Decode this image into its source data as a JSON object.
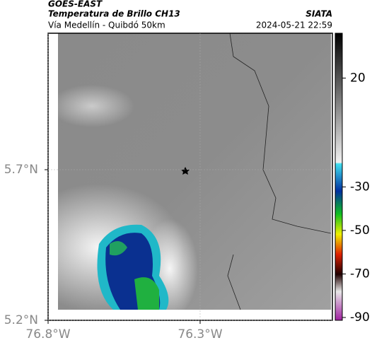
{
  "header": {
    "satellite": "GOES-EAST",
    "product": "Temperatura de Brillo CH13",
    "location": "Vía Medellín - Quibdó 50km",
    "source": "SIATA",
    "datetime": "2024-05-21 22:59"
  },
  "map": {
    "xlim": [
      -76.8,
      -75.865
    ],
    "ylim": [
      5.2,
      6.153
    ],
    "xticks": [
      {
        "value": -76.8,
        "label": "76.8°W"
      },
      {
        "value": -76.3,
        "label": "76.3°W"
      }
    ],
    "yticks": [
      {
        "value": 5.2,
        "label": "5.2°N"
      },
      {
        "value": 5.7,
        "label": "5.7°N"
      }
    ],
    "grid": true
  },
  "colorbar": {
    "lim": [
      -91.3,
      40.6
    ],
    "ticks": [
      20,
      -30,
      -50,
      -70,
      -90
    ]
  }
}
